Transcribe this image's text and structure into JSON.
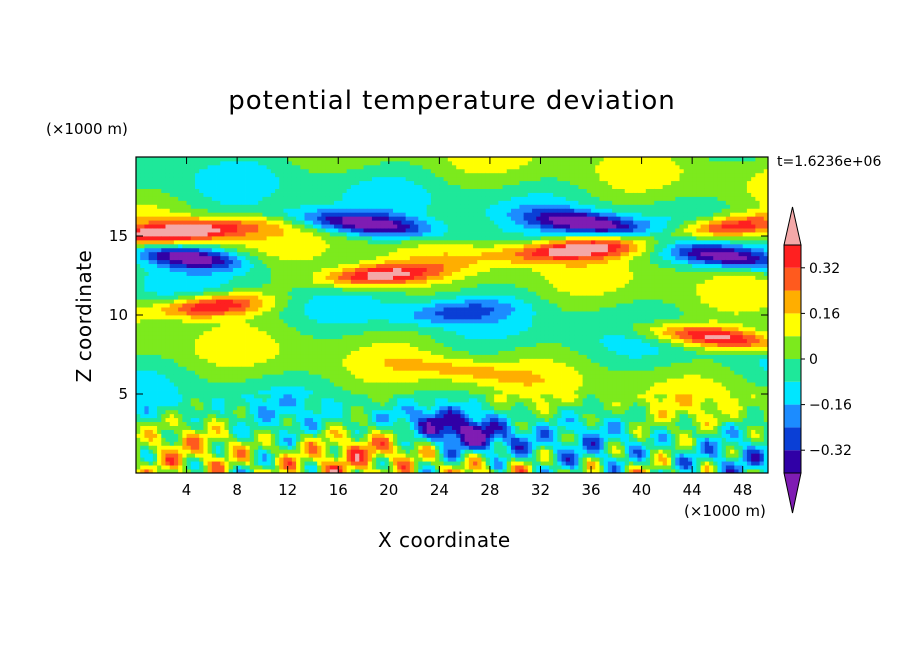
{
  "chart_data": {
    "type": "heatmap",
    "title": "potential temperature deviation",
    "xlabel": "X coordinate",
    "ylabel": "Z coordinate",
    "x_unit": "(×1000 m)",
    "y_unit": "(×1000 m)",
    "time_label": "t=1.6236e+06",
    "xlim": [
      0,
      50
    ],
    "ylim": [
      0,
      20
    ],
    "x_ticks": [
      4,
      8,
      12,
      16,
      20,
      24,
      28,
      32,
      36,
      40,
      44,
      48
    ],
    "y_ticks": [
      5,
      10,
      15
    ],
    "colorbar": {
      "levels": [
        -0.4,
        -0.32,
        -0.24,
        -0.16,
        -0.08,
        0,
        0.08,
        0.16,
        0.24,
        0.32,
        0.4
      ],
      "tick_labels": [
        "0.32",
        "0.16",
        "0",
        "−0.16",
        "−0.32"
      ],
      "tick_values": [
        0.32,
        0.16,
        0,
        -0.16,
        -0.32
      ],
      "colors": [
        "#7f1cb3",
        "#3000a6",
        "#0a3fd6",
        "#1c8cff",
        "#00e6ff",
        "#1ee89a",
        "#7cea1d",
        "#ffff00",
        "#ffae00",
        "#ff5a1e",
        "#ff2020",
        "#f4a8a8"
      ]
    },
    "features": [
      {
        "x": 4,
        "z": 15.3,
        "value": 0.45
      },
      {
        "x": 4,
        "z": 13.7,
        "value": -0.45
      },
      {
        "x": 6,
        "z": 10.6,
        "value": 0.45
      },
      {
        "x": 18,
        "z": 15.8,
        "value": -0.45
      },
      {
        "x": 19,
        "z": 12.5,
        "value": 0.45
      },
      {
        "x": 36,
        "z": 15.8,
        "value": -0.45
      },
      {
        "x": 35,
        "z": 14.2,
        "value": 0.45
      },
      {
        "x": 47,
        "z": 13.7,
        "value": -0.45
      },
      {
        "x": 47,
        "z": 15.6,
        "value": 0.42
      },
      {
        "x": 46,
        "z": 8.6,
        "value": 0.45
      },
      {
        "x": 25,
        "z": 10.2,
        "value": -0.2
      },
      {
        "x": 26,
        "z": 6.5,
        "value": 0.15
      },
      {
        "x": 22,
        "z": 2.0,
        "value": 0.22
      },
      {
        "x": 26,
        "z": 2.5,
        "value": -0.45
      }
    ]
  }
}
